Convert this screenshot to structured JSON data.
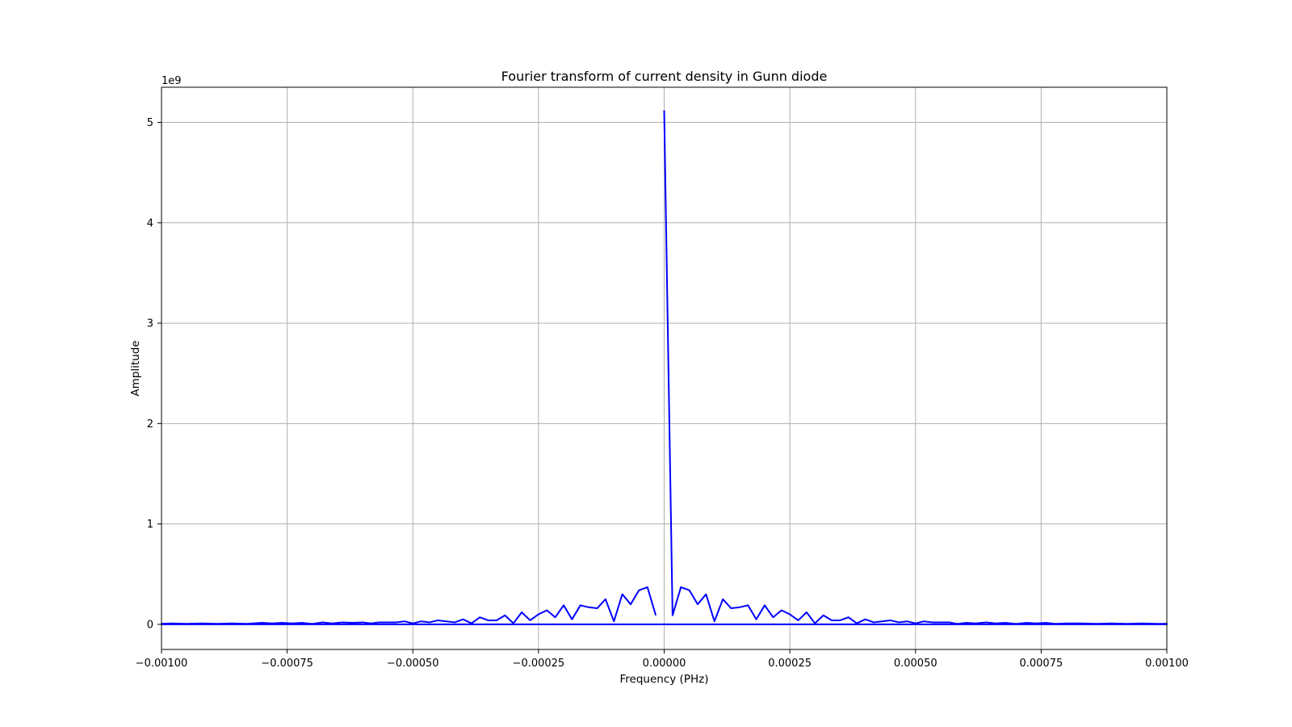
{
  "chart_data": {
    "type": "line",
    "title": "Fourier transform of current density in Gunn diode",
    "xlabel": "Frequency (PHz)",
    "ylabel": "Amplitude",
    "y_offset_label": "1e9",
    "y_scale_factor": 1000000000,
    "xlim": [
      -0.001,
      0.001
    ],
    "ylim": [
      -0.25,
      5.35
    ],
    "grid": true,
    "x_ticks": [
      -0.001,
      -0.00075,
      -0.0005,
      -0.00025,
      0,
      0.00025,
      0.0005,
      0.00075,
      0.001
    ],
    "x_tick_labels": [
      "−0.00100",
      "−0.00075",
      "−0.00050",
      "−0.00025",
      "0.00000",
      "0.00025",
      "0.00050",
      "0.00075",
      "0.00100"
    ],
    "y_ticks": [
      0,
      1,
      2,
      3,
      4,
      5
    ],
    "y_tick_labels": [
      "0",
      "1",
      "2",
      "3",
      "4",
      "5"
    ],
    "series": [
      {
        "color": "#0000ff",
        "points": [
          [
            0,
            5.12
          ],
          [
            1.67e-05,
            0.09
          ],
          [
            3.33e-05,
            0.37
          ],
          [
            5e-05,
            0.34
          ],
          [
            6.67e-05,
            0.2
          ],
          [
            8.33e-05,
            0.3
          ],
          [
            0.0001,
            0.03
          ],
          [
            0.0001167,
            0.25
          ],
          [
            0.0001333,
            0.16
          ],
          [
            0.00015,
            0.17
          ],
          [
            0.0001667,
            0.19
          ],
          [
            0.0001833,
            0.05
          ],
          [
            0.0002,
            0.19
          ],
          [
            0.0002167,
            0.07
          ],
          [
            0.0002333,
            0.14
          ],
          [
            0.00025,
            0.1
          ],
          [
            0.0002667,
            0.04
          ],
          [
            0.0002833,
            0.12
          ],
          [
            0.0003,
            0.01
          ],
          [
            0.0003167,
            0.09
          ],
          [
            0.0003333,
            0.04
          ],
          [
            0.00035,
            0.04
          ],
          [
            0.0003667,
            0.07
          ],
          [
            0.0003833,
            0.01
          ],
          [
            0.0004,
            0.05
          ],
          [
            0.0004167,
            0.02
          ],
          [
            0.0004333,
            0.03
          ],
          [
            0.00045,
            0.04
          ],
          [
            0.0004667,
            0.02
          ],
          [
            0.0004833,
            0.03
          ],
          [
            0.0005,
            0.01
          ],
          [
            0.0005167,
            0.03
          ],
          [
            0.0005333,
            0.02
          ],
          [
            0.00055,
            0.02
          ],
          [
            0.0005667,
            0.02
          ],
          [
            0.0005833,
            0.005
          ],
          [
            0.0006,
            0.015
          ],
          [
            0.00062,
            0.01
          ],
          [
            0.00064,
            0.02
          ],
          [
            0.00066,
            0.01
          ],
          [
            0.00068,
            0.015
          ],
          [
            0.0007,
            0.005
          ],
          [
            0.00072,
            0.015
          ],
          [
            0.00074,
            0.01
          ],
          [
            0.00076,
            0.015
          ],
          [
            0.00078,
            0.005
          ],
          [
            0.0008,
            0.01
          ],
          [
            0.00083,
            0.01
          ],
          [
            0.00086,
            0.005
          ],
          [
            0.00089,
            0.01
          ],
          [
            0.00092,
            0.005
          ],
          [
            0.00095,
            0.01
          ],
          [
            0.00098,
            0.005
          ],
          [
            0.001,
            0.005
          ],
          [
            0.001,
            0
          ],
          [
            -0.001,
            0
          ],
          [
            -0.001,
            0.005
          ],
          [
            -0.00098,
            0.01
          ],
          [
            -0.00095,
            0.005
          ],
          [
            -0.00092,
            0.01
          ],
          [
            -0.00089,
            0.005
          ],
          [
            -0.00086,
            0.01
          ],
          [
            -0.00083,
            0.005
          ],
          [
            -0.0008,
            0.015
          ],
          [
            -0.00078,
            0.01
          ],
          [
            -0.00076,
            0.015
          ],
          [
            -0.00074,
            0.01
          ],
          [
            -0.00072,
            0.015
          ],
          [
            -0.0007,
            0.005
          ],
          [
            -0.00068,
            0.02
          ],
          [
            -0.00066,
            0.01
          ],
          [
            -0.00064,
            0.02
          ],
          [
            -0.00062,
            0.015
          ],
          [
            -0.0006,
            0.02
          ],
          [
            -0.0005833,
            0.01
          ],
          [
            -0.0005667,
            0.02
          ],
          [
            -0.00055,
            0.02
          ],
          [
            -0.0005333,
            0.02
          ],
          [
            -0.0005167,
            0.03
          ],
          [
            -0.0005,
            0.01
          ],
          [
            -0.0004833,
            0.03
          ],
          [
            -0.0004667,
            0.02
          ],
          [
            -0.00045,
            0.04
          ],
          [
            -0.0004333,
            0.03
          ],
          [
            -0.0004167,
            0.02
          ],
          [
            -0.0004,
            0.05
          ],
          [
            -0.0003833,
            0.01
          ],
          [
            -0.0003667,
            0.07
          ],
          [
            -0.00035,
            0.04
          ],
          [
            -0.0003333,
            0.04
          ],
          [
            -0.0003167,
            0.09
          ],
          [
            -0.0003,
            0.01
          ],
          [
            -0.0002833,
            0.12
          ],
          [
            -0.0002667,
            0.04
          ],
          [
            -0.00025,
            0.1
          ],
          [
            -0.0002333,
            0.14
          ],
          [
            -0.0002167,
            0.07
          ],
          [
            -0.0002,
            0.19
          ],
          [
            -0.0001833,
            0.05
          ],
          [
            -0.0001667,
            0.19
          ],
          [
            -0.00015,
            0.17
          ],
          [
            -0.0001333,
            0.16
          ],
          [
            -0.0001167,
            0.25
          ],
          [
            -0.0001,
            0.03
          ],
          [
            -8.33e-05,
            0.3
          ],
          [
            -6.67e-05,
            0.2
          ],
          [
            -5e-05,
            0.34
          ],
          [
            -3.33e-05,
            0.37
          ],
          [
            -1.67e-05,
            0.09
          ]
        ]
      }
    ]
  }
}
